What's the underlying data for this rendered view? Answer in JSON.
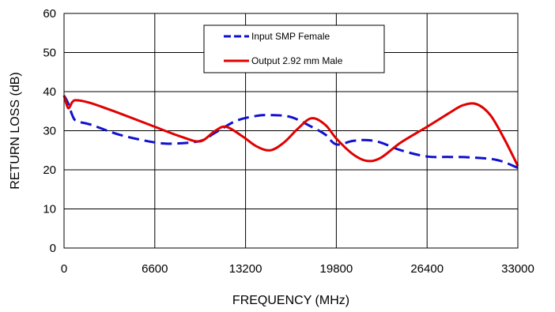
{
  "chart_data": {
    "type": "line",
    "title": "",
    "xlabel": "FREQUENCY (MHz)",
    "ylabel": "RETURN LOSS (dB)",
    "xlim": [
      0,
      33000
    ],
    "ylim": [
      0,
      60
    ],
    "xticks": [
      0,
      6600,
      13200,
      19800,
      26400,
      33000
    ],
    "xtick_labels": [
      "0",
      "6600",
      "13200",
      "19800",
      "26400",
      "33000"
    ],
    "yticks": [
      0,
      10,
      20,
      30,
      40,
      50,
      60
    ],
    "ytick_labels": [
      "0",
      "10",
      "20",
      "30",
      "40",
      "50",
      "60"
    ],
    "grid": true,
    "legend_position": "top-center",
    "series": [
      {
        "name": "Input SMP Female",
        "color": "#1010d0",
        "style": "dashed",
        "x": [
          0,
          300,
          600,
          900,
          2000,
          4000,
          6600,
          8000,
          9900,
          11000,
          12500,
          14000,
          15000,
          16500,
          18000,
          19000,
          19800,
          21000,
          22000,
          23000,
          24500,
          26400,
          28000,
          29500,
          31500,
          33000
        ],
        "y": [
          39,
          37,
          34,
          32.5,
          31.5,
          29,
          27,
          26.7,
          27.4,
          29.5,
          32.5,
          33.8,
          34,
          33.5,
          31,
          29,
          26.5,
          27.4,
          27.6,
          27,
          25,
          23.4,
          23.3,
          23.2,
          22.5,
          20.5
        ]
      },
      {
        "name": "Output 2.92 mm Male",
        "color": "#e00000",
        "style": "solid",
        "x": [
          0,
          300,
          600,
          900,
          2000,
          4000,
          6600,
          8500,
          9900,
          11000,
          11800,
          13000,
          14000,
          15000,
          16000,
          17000,
          18000,
          19000,
          19800,
          21000,
          22000,
          23000,
          24500,
          26400,
          28000,
          29000,
          30000,
          31000,
          32000,
          33000
        ],
        "y": [
          39,
          35.8,
          37.3,
          37.8,
          37,
          34.5,
          31,
          28.5,
          27.3,
          30,
          31,
          28.5,
          26,
          25,
          27,
          30.5,
          33.2,
          31.5,
          28,
          24,
          22.3,
          23,
          27,
          31,
          34.5,
          36.5,
          36.8,
          34,
          28,
          21
        ]
      }
    ]
  }
}
